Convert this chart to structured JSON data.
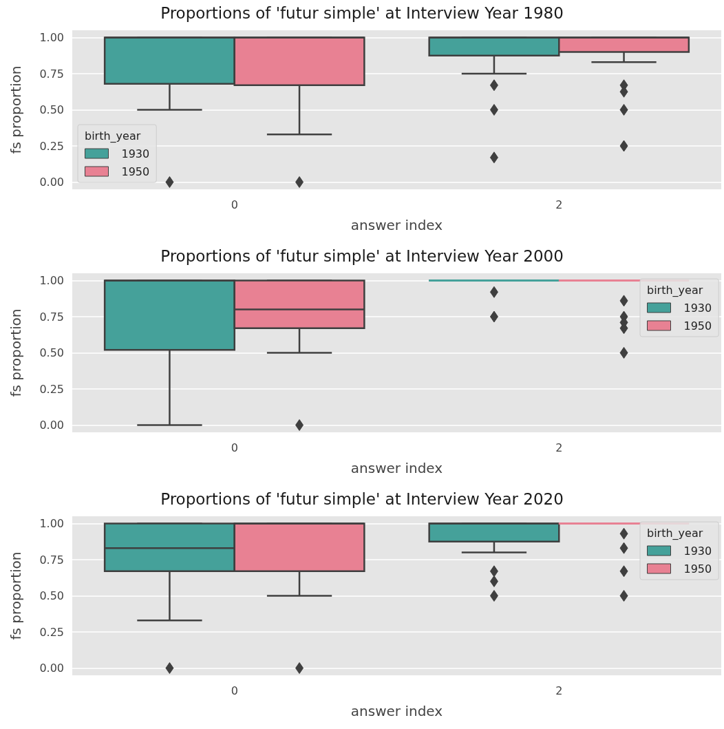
{
  "chart_data": [
    {
      "type": "box",
      "title": "Proportions of 'futur simple' at Interview Year 1980",
      "xlabel": "answer index",
      "ylabel": "fs proportion",
      "legend_title": "birth_year",
      "legend": "bottom left",
      "grid": "y",
      "marker": "diamond",
      "categories": [
        "0",
        "2"
      ],
      "ylim": [
        -0.05,
        1.05
      ],
      "yticks": [
        {
          "value": 0,
          "label": "0.00"
        },
        {
          "value": 0.25,
          "label": "0.25"
        },
        {
          "value": 0.5,
          "label": "0.50"
        },
        {
          "value": 0.75,
          "label": "0.75"
        },
        {
          "value": 1,
          "label": "1.00"
        }
      ],
      "series": [
        {
          "name": "1930",
          "color": "#45a19a",
          "boxes": [
            {
              "low": 0.5,
              "q1": 0.68,
              "median": 1,
              "q3": 1,
              "high": 1,
              "outliers": [
                0
              ]
            },
            {
              "low": 0.75,
              "q1": 0.875,
              "median": 1,
              "q3": 1,
              "high": 1,
              "outliers": [
                0.67,
                0.5,
                0.17
              ]
            }
          ]
        },
        {
          "name": "1950",
          "color": "#e88193",
          "boxes": [
            {
              "low": 0.33,
              "q1": 0.67,
              "median": 1,
              "q3": 1,
              "high": 1,
              "outliers": [
                0
              ]
            },
            {
              "low": 0.83,
              "q1": 0.9,
              "median": 1,
              "q3": 1,
              "high": 1,
              "outliers": [
                0.67,
                0.625,
                0.5,
                0.25
              ]
            }
          ]
        }
      ]
    },
    {
      "type": "box",
      "title": "Proportions of 'futur simple' at Interview Year 2000",
      "xlabel": "answer index",
      "ylabel": "fs proportion",
      "legend_title": "birth_year",
      "legend": "top right",
      "grid": "y",
      "marker": "diamond",
      "categories": [
        "0",
        "2"
      ],
      "ylim": [
        -0.05,
        1.05
      ],
      "yticks": [
        {
          "value": 0,
          "label": "0.00"
        },
        {
          "value": 0.25,
          "label": "0.25"
        },
        {
          "value": 0.5,
          "label": "0.50"
        },
        {
          "value": 0.75,
          "label": "0.75"
        },
        {
          "value": 1,
          "label": "1.00"
        }
      ],
      "series": [
        {
          "name": "1930",
          "color": "#45a19a",
          "boxes": [
            {
              "low": 0,
              "q1": 0.52,
              "median": 1,
              "q3": 1,
              "high": 1
            },
            {
              "low": 1,
              "q1": 1,
              "median": 1,
              "q3": 1,
              "high": 1,
              "outliers": [
                0.92,
                0.75
              ]
            }
          ]
        },
        {
          "name": "1950",
          "color": "#e88193",
          "boxes": [
            {
              "low": 0.5,
              "q1": 0.67,
              "median": 0.8,
              "q3": 1,
              "high": 1,
              "outliers": [
                0
              ]
            },
            {
              "low": 1,
              "q1": 1,
              "median": 1,
              "q3": 1,
              "high": 1,
              "outliers": [
                0.86,
                0.75,
                0.71,
                0.67,
                0.5
              ]
            }
          ]
        }
      ]
    },
    {
      "type": "box",
      "title": "Proportions of 'futur simple' at Interview Year 2020",
      "xlabel": "answer index",
      "ylabel": "fs proportion",
      "legend_title": "birth_year",
      "legend": "top right",
      "grid": "y",
      "marker": "diamond",
      "categories": [
        "0",
        "2"
      ],
      "ylim": [
        -0.05,
        1.05
      ],
      "yticks": [
        {
          "value": 0,
          "label": "0.00"
        },
        {
          "value": 0.25,
          "label": "0.25"
        },
        {
          "value": 0.5,
          "label": "0.50"
        },
        {
          "value": 0.75,
          "label": "0.75"
        },
        {
          "value": 1,
          "label": "1.00"
        }
      ],
      "series": [
        {
          "name": "1930",
          "color": "#45a19a",
          "boxes": [
            {
              "low": 0.33,
              "q1": 0.67,
              "median": 0.83,
              "q3": 1,
              "high": 1,
              "outliers": [
                0
              ]
            },
            {
              "low": 0.8,
              "q1": 0.875,
              "median": 1,
              "q3": 1,
              "high": 1,
              "outliers": [
                0.67,
                0.6,
                0.5
              ]
            }
          ]
        },
        {
          "name": "1950",
          "color": "#e88193",
          "boxes": [
            {
              "low": 0.5,
              "q1": 0.67,
              "median": 1,
              "q3": 1,
              "high": 1,
              "outliers": [
                0
              ]
            },
            {
              "low": 1,
              "q1": 1,
              "median": 1,
              "q3": 1,
              "high": 1,
              "outliers": [
                0.93,
                0.83,
                0.67,
                0.5
              ]
            }
          ]
        }
      ]
    }
  ]
}
